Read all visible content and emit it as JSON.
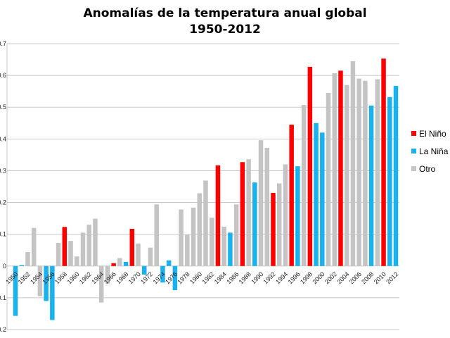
{
  "chart_data": {
    "type": "bar",
    "title": [
      "Anomalías de la temperatura anual global",
      "1950-2012"
    ],
    "xlabel": "",
    "ylabel": "",
    "ylim": [
      -0.2,
      0.7
    ],
    "yticks": [
      "-0.2",
      "-0.1",
      "0",
      "0.1",
      "0.2",
      "0.3",
      "0.4",
      "0.5",
      "0.6",
      "0.7"
    ],
    "grid": true,
    "legend_position": "right",
    "legend": [
      {
        "key": "nino",
        "label": "El Niño",
        "color": "#ff0000"
      },
      {
        "key": "nina",
        "label": "La Niña",
        "color": "#1ab2ee"
      },
      {
        "key": "otro",
        "label": "Otro",
        "color": "#c4c4c4"
      }
    ],
    "categories": [
      1950,
      1951,
      1952,
      1953,
      1954,
      1955,
      1956,
      1957,
      1958,
      1959,
      1960,
      1961,
      1962,
      1963,
      1964,
      1965,
      1966,
      1967,
      1968,
      1969,
      1970,
      1971,
      1972,
      1973,
      1974,
      1975,
      1976,
      1977,
      1978,
      1979,
      1980,
      1981,
      1982,
      1983,
      1984,
      1985,
      1986,
      1987,
      1988,
      1989,
      1990,
      1991,
      1992,
      1993,
      1994,
      1995,
      1996,
      1997,
      1998,
      1999,
      2000,
      2001,
      2002,
      2003,
      2004,
      2005,
      2006,
      2007,
      2008,
      2009,
      2010,
      2011,
      2012
    ],
    "values": [
      -0.157,
      0.003,
      0.044,
      0.12,
      -0.095,
      -0.11,
      -0.17,
      0.073,
      0.123,
      0.079,
      0.03,
      0.105,
      0.13,
      0.149,
      -0.115,
      -0.055,
      0.009,
      0.025,
      0.013,
      0.117,
      0.071,
      -0.027,
      0.058,
      0.194,
      -0.052,
      0.018,
      -0.076,
      0.178,
      0.098,
      0.184,
      0.229,
      0.269,
      0.152,
      0.317,
      0.124,
      0.105,
      0.194,
      0.327,
      0.336,
      0.263,
      0.396,
      0.372,
      0.23,
      0.26,
      0.32,
      0.445,
      0.314,
      0.507,
      0.627,
      0.45,
      0.42,
      0.545,
      0.607,
      0.615,
      0.57,
      0.645,
      0.59,
      0.583,
      0.505,
      0.588,
      0.653,
      0.532,
      0.567
    ],
    "classes": [
      "nina",
      "nina",
      "otro",
      "otro",
      "otro",
      "nina",
      "nina",
      "otro",
      "nino",
      "otro",
      "otro",
      "otro",
      "otro",
      "otro",
      "otro",
      "otro",
      "nino",
      "otro",
      "nina",
      "nino",
      "otro",
      "nina",
      "otro",
      "otro",
      "nina",
      "nina",
      "nina",
      "otro",
      "otro",
      "otro",
      "otro",
      "otro",
      "otro",
      "nino",
      "otro",
      "nina",
      "otro",
      "nino",
      "otro",
      "nina",
      "otro",
      "otro",
      "nino",
      "otro",
      "otro",
      "nino",
      "nina",
      "otro",
      "nino",
      "nina",
      "nina",
      "otro",
      "otro",
      "nino",
      "otro",
      "otro",
      "otro",
      "otro",
      "nina",
      "otro",
      "nino",
      "nina",
      "nina"
    ]
  }
}
